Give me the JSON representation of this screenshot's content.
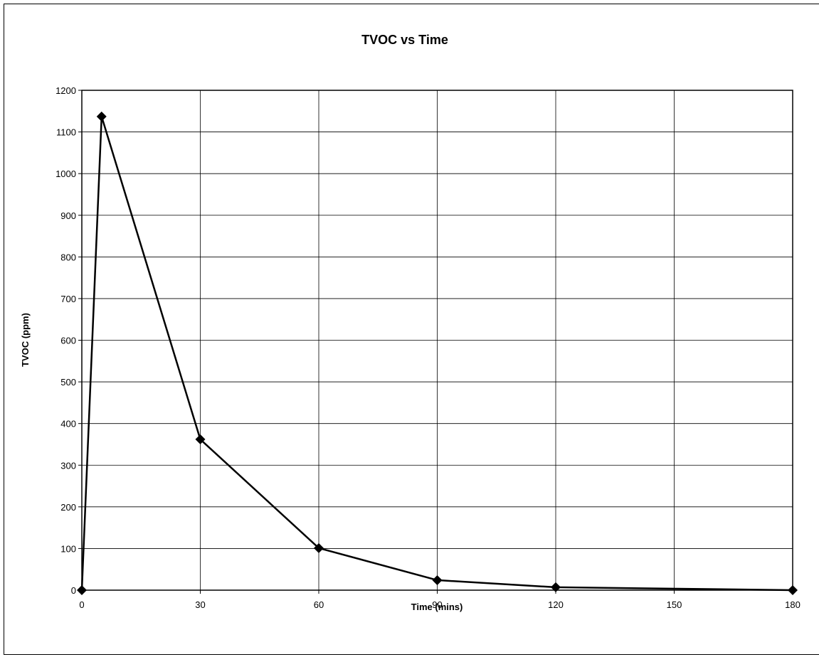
{
  "chart_data": {
    "type": "line",
    "title": "TVOC vs Time",
    "xlabel": "Time (mins)",
    "ylabel": "TVOC (ppm)",
    "xlim": [
      0,
      180
    ],
    "ylim": [
      0,
      1200
    ],
    "xticks": [
      "0",
      "30",
      "60",
      "90",
      "120",
      "150",
      "180"
    ],
    "yticks": [
      "0",
      "100",
      "200",
      "300",
      "400",
      "500",
      "600",
      "700",
      "800",
      "900",
      "1000",
      "1100",
      "1200"
    ],
    "grid": true,
    "legend": "none",
    "marker": "diamond",
    "color": "#000000",
    "series": [
      {
        "x": [
          0,
          5,
          30,
          60,
          90,
          120,
          180
        ],
        "y": [
          0,
          1137,
          362,
          101,
          24,
          7,
          0
        ]
      }
    ]
  }
}
